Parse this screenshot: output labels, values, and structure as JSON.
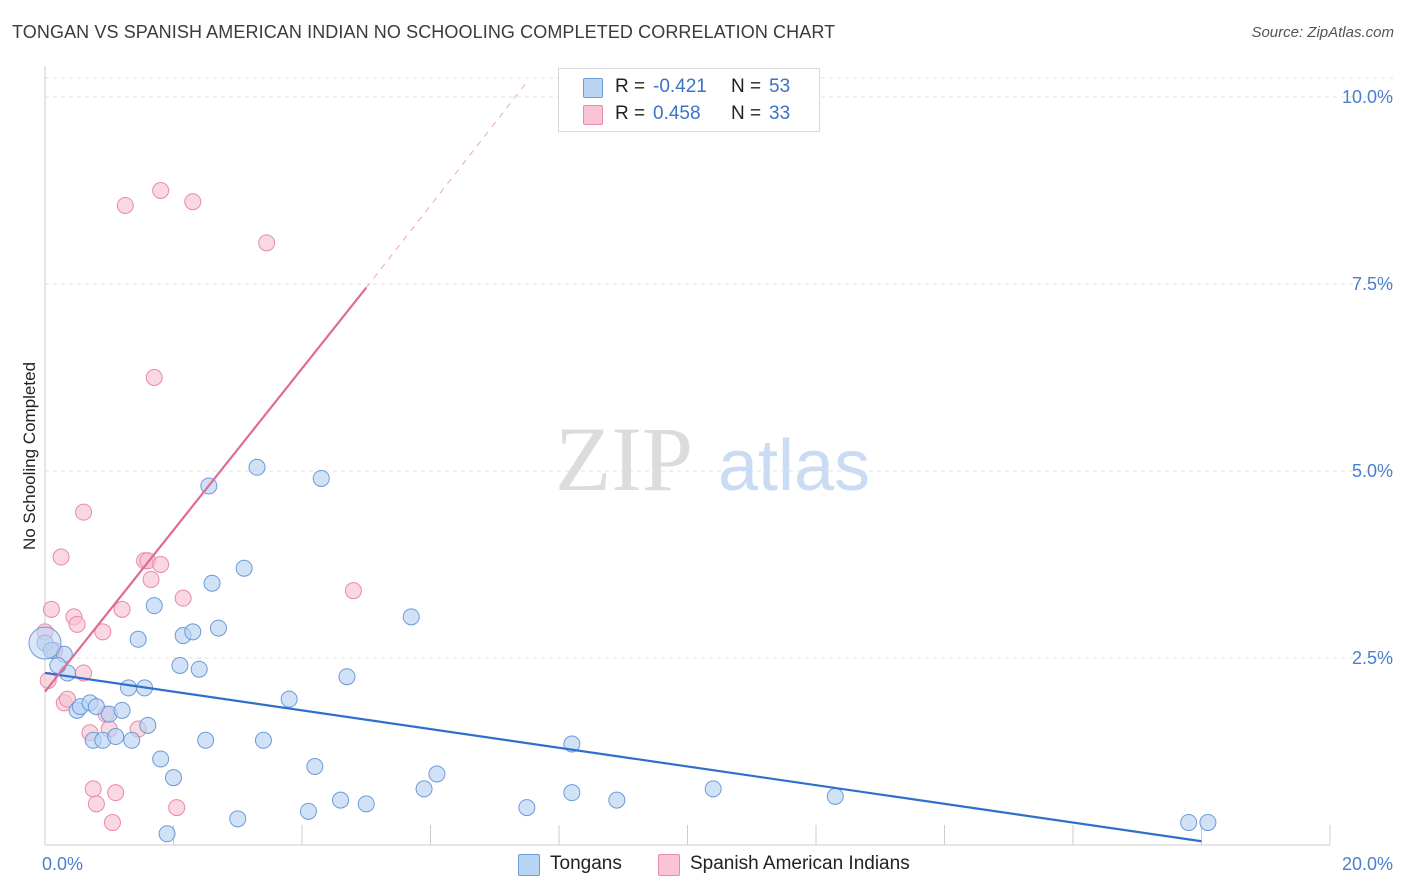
{
  "header": {
    "title": "TONGAN VS SPANISH AMERICAN INDIAN NO SCHOOLING COMPLETED CORRELATION CHART",
    "source": "Source: ZipAtlas.com"
  },
  "legend": {
    "rows": [
      {
        "r_label": "R =",
        "r_value": "-0.421",
        "n_label": "N =",
        "n_value": "53"
      },
      {
        "r_label": "R =",
        "r_value": "0.458",
        "n_label": "N =",
        "n_value": "33"
      }
    ]
  },
  "watermark": {
    "zip": "ZIP",
    "atlas": "atlas"
  },
  "colors": {
    "tongan_fill": "#b9d3f3",
    "tongan_stroke": "#6b9bd8",
    "tongan_line": "#2f6fcc",
    "spanish_fill": "#f8c3d2",
    "spanish_stroke": "#e88aa8",
    "spanish_line": "#e06b93",
    "axis_label": "#4a7fcf",
    "grid": "#e2e2e2"
  },
  "chart_data": {
    "type": "scatter",
    "title": "TONGAN VS SPANISH AMERICAN INDIAN NO SCHOOLING COMPLETED CORRELATION CHART",
    "xlabel": "",
    "ylabel": "No Schooling Completed",
    "xlim": [
      0,
      20
    ],
    "ylim": [
      0,
      10.5
    ],
    "x_tick_labels": [
      "0.0%",
      "20.0%"
    ],
    "y_ticks": [
      2.5,
      5.0,
      7.5,
      10.0
    ],
    "y_tick_labels": [
      "2.5%",
      "5.0%",
      "7.5%",
      "10.0%"
    ],
    "grid": true,
    "legend_placement": "top-center",
    "series": [
      {
        "name": "Tongans",
        "trend": {
          "x": [
            0.0,
            18.0
          ],
          "y": [
            2.3,
            0.05
          ]
        },
        "points": [
          [
            0.0,
            2.7
          ],
          [
            0.1,
            2.6
          ],
          [
            0.3,
            2.55
          ],
          [
            0.35,
            2.3
          ],
          [
            0.2,
            2.4
          ],
          [
            0.5,
            1.8
          ],
          [
            0.55,
            1.85
          ],
          [
            0.7,
            1.9
          ],
          [
            0.75,
            1.4
          ],
          [
            0.8,
            1.85
          ],
          [
            0.9,
            1.4
          ],
          [
            1.0,
            1.75
          ],
          [
            1.1,
            1.45
          ],
          [
            1.2,
            1.8
          ],
          [
            1.3,
            2.1
          ],
          [
            1.35,
            1.4
          ],
          [
            1.45,
            2.75
          ],
          [
            1.55,
            2.1
          ],
          [
            1.6,
            1.6
          ],
          [
            1.7,
            3.2
          ],
          [
            1.8,
            1.15
          ],
          [
            1.9,
            0.15
          ],
          [
            2.0,
            0.9
          ],
          [
            2.1,
            2.4
          ],
          [
            2.15,
            2.8
          ],
          [
            2.3,
            2.85
          ],
          [
            2.4,
            2.35
          ],
          [
            2.5,
            1.4
          ],
          [
            2.55,
            4.8
          ],
          [
            2.6,
            3.5
          ],
          [
            2.7,
            2.9
          ],
          [
            3.0,
            0.35
          ],
          [
            3.1,
            3.7
          ],
          [
            3.3,
            5.05
          ],
          [
            3.4,
            1.4
          ],
          [
            3.8,
            1.95
          ],
          [
            4.1,
            0.45
          ],
          [
            4.2,
            1.05
          ],
          [
            4.3,
            4.9
          ],
          [
            4.6,
            0.6
          ],
          [
            4.7,
            2.25
          ],
          [
            5.0,
            0.55
          ],
          [
            5.7,
            3.05
          ],
          [
            5.9,
            0.75
          ],
          [
            6.1,
            0.95
          ],
          [
            7.5,
            0.5
          ],
          [
            8.2,
            0.7
          ],
          [
            8.2,
            1.35
          ],
          [
            8.9,
            0.6
          ],
          [
            10.4,
            0.75
          ],
          [
            12.3,
            0.65
          ],
          [
            17.8,
            0.3
          ],
          [
            18.1,
            0.3
          ]
        ]
      },
      {
        "name": "Spanish American Indians",
        "trend": {
          "x": [
            0.0,
            5.0
          ],
          "y": [
            2.05,
            7.45
          ]
        },
        "trend_extended": {
          "x": [
            5.0,
            7.5
          ],
          "y": [
            7.45,
            10.2
          ]
        },
        "points": [
          [
            0.0,
            2.85
          ],
          [
            0.05,
            2.2
          ],
          [
            0.1,
            3.15
          ],
          [
            0.15,
            2.6
          ],
          [
            0.25,
            3.85
          ],
          [
            0.3,
            1.9
          ],
          [
            0.35,
            1.95
          ],
          [
            0.45,
            3.05
          ],
          [
            0.5,
            2.95
          ],
          [
            0.6,
            2.3
          ],
          [
            0.6,
            4.45
          ],
          [
            0.7,
            1.5
          ],
          [
            0.75,
            0.75
          ],
          [
            0.8,
            0.55
          ],
          [
            0.9,
            2.85
          ],
          [
            0.95,
            1.75
          ],
          [
            1.0,
            1.55
          ],
          [
            1.05,
            0.3
          ],
          [
            1.1,
            0.7
          ],
          [
            1.2,
            3.15
          ],
          [
            1.25,
            8.55
          ],
          [
            1.45,
            1.55
          ],
          [
            1.55,
            3.8
          ],
          [
            1.6,
            3.8
          ],
          [
            1.65,
            3.55
          ],
          [
            1.7,
            6.25
          ],
          [
            1.8,
            3.75
          ],
          [
            1.8,
            8.75
          ],
          [
            2.05,
            0.5
          ],
          [
            2.15,
            3.3
          ],
          [
            2.3,
            8.6
          ],
          [
            3.45,
            8.05
          ],
          [
            4.8,
            3.4
          ]
        ]
      }
    ]
  }
}
